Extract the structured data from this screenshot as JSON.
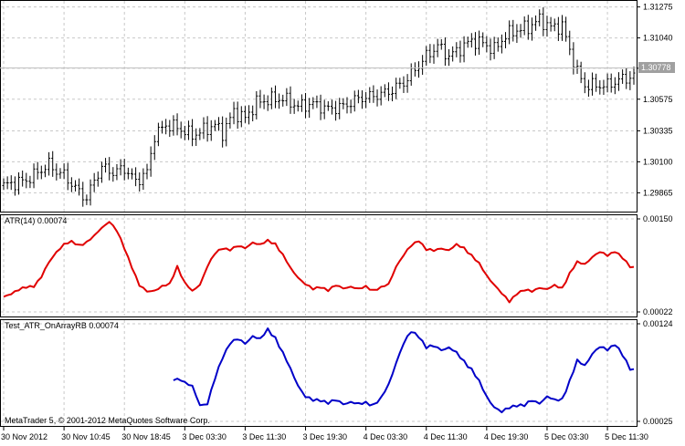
{
  "colors": {
    "background": "#ffffff",
    "grid": "#c8c8c8",
    "bars": "#000000",
    "atr_line": "#e00000",
    "test_line": "#0000c8",
    "current_price_line": "#c0c0c0",
    "current_price_tag": "#a0a0a0"
  },
  "chart_data": [
    {
      "type": "bar",
      "title": "",
      "current_price": "1.30778",
      "y_ticks": [
        "1.31275",
        "1.31040",
        "1.30810",
        "1.30575",
        "1.30335",
        "1.30100",
        "1.29865"
      ],
      "ylim": [
        1.2975,
        1.313
      ],
      "x_ticks": [
        "30 Nov 2012",
        "30 Nov 10:45",
        "30 Nov 18:45",
        "3 Dec 03:30",
        "3 Dec 11:30",
        "3 Dec 19:30",
        "4 Dec 03:30",
        "4 Dec 11:30",
        "4 Dec 19:30",
        "5 Dec 03:30",
        "5 Dec 11:30"
      ],
      "anchors": [
        [
          0,
          1.2992
        ],
        [
          6,
          1.2996
        ],
        [
          12,
          1.3008
        ],
        [
          14,
          1.3003
        ],
        [
          16,
          1.3
        ],
        [
          19,
          1.299
        ],
        [
          22,
          1.2982
        ],
        [
          24,
          1.2996
        ],
        [
          26,
          1.3006
        ],
        [
          29,
          1.3002
        ],
        [
          32,
          1.3005
        ],
        [
          35,
          1.2995
        ],
        [
          38,
          1.3002
        ],
        [
          40,
          1.303
        ],
        [
          43,
          1.3038
        ],
        [
          46,
          1.3036
        ],
        [
          50,
          1.303
        ],
        [
          53,
          1.3034
        ],
        [
          56,
          1.3038
        ],
        [
          58,
          1.3032
        ],
        [
          61,
          1.3048
        ],
        [
          64,
          1.3043
        ],
        [
          67,
          1.3055
        ],
        [
          70,
          1.3057
        ],
        [
          74,
          1.3058
        ],
        [
          78,
          1.3052
        ],
        [
          82,
          1.3054
        ],
        [
          86,
          1.305
        ],
        [
          90,
          1.3052
        ],
        [
          94,
          1.3058
        ],
        [
          98,
          1.306
        ],
        [
          102,
          1.3063
        ],
        [
          106,
          1.307
        ],
        [
          109,
          1.308
        ],
        [
          112,
          1.309
        ],
        [
          115,
          1.3098
        ],
        [
          118,
          1.309
        ],
        [
          121,
          1.3096
        ],
        [
          124,
          1.3102
        ],
        [
          127,
          1.31
        ],
        [
          130,
          1.3095
        ],
        [
          133,
          1.3106
        ],
        [
          136,
          1.311
        ],
        [
          139,
          1.3112
        ],
        [
          142,
          1.3118
        ],
        [
          145,
          1.3112
        ],
        [
          148,
          1.3113
        ],
        [
          150,
          1.3095
        ],
        [
          152,
          1.3078
        ],
        [
          154,
          1.3068
        ],
        [
          157,
          1.3068
        ],
        [
          160,
          1.3068
        ],
        [
          163,
          1.3072
        ],
        [
          167,
          1.3075
        ]
      ]
    },
    {
      "type": "line",
      "title": "ATR(14) 0.00074",
      "ylim": [
        0.00022,
        0.0015
      ],
      "y_ticks": [
        "0.00150",
        "0.00022"
      ],
      "series": [
        {
          "name": "ATR(14)",
          "start": 0,
          "points": [
            [
              0,
              0.00043
            ],
            [
              3,
              0.0005
            ],
            [
              6,
              0.00056
            ],
            [
              8,
              0.00058
            ],
            [
              10,
              0.0007
            ],
            [
              12,
              0.0009
            ],
            [
              14,
              0.00105
            ],
            [
              16,
              0.00115
            ],
            [
              18,
              0.00118
            ],
            [
              20,
              0.00114
            ],
            [
              22,
              0.00118
            ],
            [
              24,
              0.00126
            ],
            [
              26,
              0.00138
            ],
            [
              28,
              0.00147
            ],
            [
              30,
              0.00133
            ],
            [
              32,
              0.0011
            ],
            [
              34,
              0.00084
            ],
            [
              36,
              0.00058
            ],
            [
              38,
              0.0005
            ],
            [
              40,
              0.00052
            ],
            [
              42,
              0.00057
            ],
            [
              44,
              0.0006
            ],
            [
              46,
              0.00085
            ],
            [
              48,
              0.00062
            ],
            [
              50,
              0.0005
            ],
            [
              52,
              0.0006
            ],
            [
              54,
              0.00085
            ],
            [
              56,
              0.00102
            ],
            [
              58,
              0.0011
            ],
            [
              60,
              0.00108
            ],
            [
              62,
              0.00112
            ],
            [
              64,
              0.0011
            ],
            [
              66,
              0.00118
            ],
            [
              68,
              0.00114
            ],
            [
              70,
              0.0012
            ],
            [
              72,
              0.00116
            ],
            [
              74,
              0.001
            ],
            [
              76,
              0.00082
            ],
            [
              78,
              0.0007
            ],
            [
              80,
              0.0006
            ],
            [
              82,
              0.00053
            ],
            [
              84,
              0.00057
            ],
            [
              86,
              0.00052
            ],
            [
              88,
              0.00058
            ],
            [
              90,
              0.00055
            ],
            [
              92,
              0.00057
            ],
            [
              94,
              0.00053
            ],
            [
              96,
              0.00057
            ],
            [
              98,
              0.00052
            ],
            [
              100,
              0.00055
            ],
            [
              102,
              0.0006
            ],
            [
              104,
              0.00085
            ],
            [
              106,
              0.001
            ],
            [
              108,
              0.00113
            ],
            [
              110,
              0.00121
            ],
            [
              112,
              0.00108
            ],
            [
              114,
              0.00106
            ],
            [
              116,
              0.0011
            ],
            [
              118,
              0.00107
            ],
            [
              120,
              0.00114
            ],
            [
              122,
              0.0011
            ],
            [
              124,
              0.001
            ],
            [
              126,
              0.00088
            ],
            [
              128,
              0.00072
            ],
            [
              130,
              0.0006
            ],
            [
              132,
              0.00047
            ],
            [
              134,
              0.00036
            ],
            [
              136,
              0.00048
            ],
            [
              138,
              0.00052
            ],
            [
              140,
              0.0005
            ],
            [
              142,
              0.00056
            ],
            [
              144,
              0.00053
            ],
            [
              146,
              0.00058
            ],
            [
              148,
              0.00055
            ],
            [
              150,
              0.00075
            ],
            [
              152,
              0.0009
            ],
            [
              154,
              0.00088
            ],
            [
              156,
              0.00098
            ],
            [
              158,
              0.00104
            ],
            [
              160,
              0.001
            ],
            [
              162,
              0.00106
            ],
            [
              164,
              0.00096
            ],
            [
              166,
              0.00084
            ]
          ]
        }
      ]
    },
    {
      "type": "line",
      "title": "Test_ATR_OnArrayRB 0.00074",
      "ylim": [
        0.00025,
        0.00124
      ],
      "y_ticks": [
        "0.00124",
        "0.00025"
      ],
      "series": [
        {
          "name": "Test_ATR_OnArrayRB",
          "start": 45,
          "points": [
            [
              45,
              0.00068
            ],
            [
              47,
              0.00068
            ],
            [
              48,
              0.00064
            ],
            [
              50,
              0.0006
            ],
            [
              52,
              0.00042
            ],
            [
              54,
              0.00043
            ],
            [
              56,
              0.00068
            ],
            [
              58,
              0.0009
            ],
            [
              60,
              0.00105
            ],
            [
              62,
              0.00108
            ],
            [
              64,
              0.00104
            ],
            [
              66,
              0.00112
            ],
            [
              68,
              0.00108
            ],
            [
              70,
              0.00118
            ],
            [
              72,
              0.0011
            ],
            [
              74,
              0.00094
            ],
            [
              76,
              0.00078
            ],
            [
              78,
              0.00062
            ],
            [
              80,
              0.0005
            ],
            [
              82,
              0.00046
            ],
            [
              84,
              0.00047
            ],
            [
              86,
              0.00044
            ],
            [
              88,
              0.00046
            ],
            [
              90,
              0.00043
            ],
            [
              92,
              0.00045
            ],
            [
              94,
              0.00042
            ],
            [
              96,
              0.00044
            ],
            [
              98,
              0.00042
            ],
            [
              100,
              0.00048
            ],
            [
              102,
              0.00062
            ],
            [
              104,
              0.00085
            ],
            [
              106,
              0.00104
            ],
            [
              108,
              0.00116
            ],
            [
              110,
              0.00112
            ],
            [
              112,
              0.001
            ],
            [
              114,
              0.00101
            ],
            [
              116,
              0.00098
            ],
            [
              118,
              0.001
            ],
            [
              120,
              0.00094
            ],
            [
              122,
              0.00086
            ],
            [
              124,
              0.00078
            ],
            [
              126,
              0.00065
            ],
            [
              128,
              0.0005
            ],
            [
              130,
              0.0004
            ],
            [
              132,
              0.00034
            ],
            [
              134,
              0.00039
            ],
            [
              136,
              0.00042
            ],
            [
              138,
              0.00041
            ],
            [
              140,
              0.00046
            ],
            [
              142,
              0.00044
            ],
            [
              144,
              0.0005
            ],
            [
              146,
              0.00046
            ],
            [
              148,
              0.00048
            ],
            [
              150,
              0.00066
            ],
            [
              152,
              0.00086
            ],
            [
              154,
              0.00082
            ],
            [
              156,
              0.00094
            ],
            [
              158,
              0.001
            ],
            [
              160,
              0.00098
            ],
            [
              162,
              0.00104
            ],
            [
              164,
              0.00092
            ],
            [
              166,
              0.00078
            ]
          ]
        }
      ]
    }
  ],
  "copyright": "MetaTrader 5, © 2001-2012 MetaQuotes Software Corp."
}
